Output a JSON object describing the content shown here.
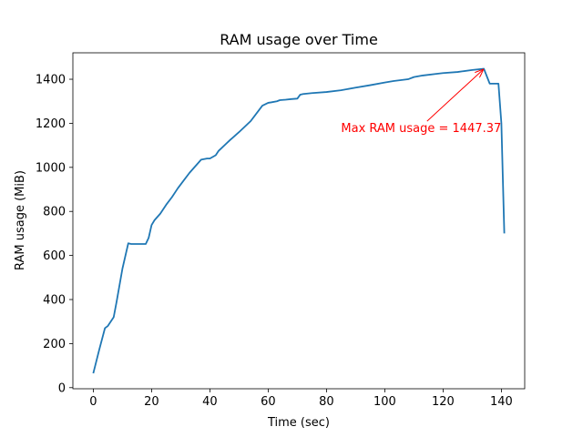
{
  "chart_data": {
    "type": "line",
    "title": "RAM usage over Time",
    "xlabel": "Time (sec)",
    "ylabel": "RAM usage (MiB)",
    "xlim": [
      -7,
      148
    ],
    "ylim": [
      -5,
      1520
    ],
    "xticks": [
      0,
      20,
      40,
      60,
      80,
      100,
      120,
      140
    ],
    "yticks": [
      0,
      200,
      400,
      600,
      800,
      1000,
      1200,
      1400
    ],
    "grid": false,
    "legend": "none",
    "line_color": "#1f77b4",
    "series": [
      {
        "x": [
          0,
          2,
          4,
          5,
          7,
          8,
          10,
          12,
          13,
          15,
          18,
          19,
          20,
          21,
          23,
          25,
          27,
          29,
          31,
          33,
          35,
          37,
          39,
          40,
          42,
          43,
          45,
          47,
          50,
          54,
          58,
          60,
          61,
          63,
          64,
          66,
          68,
          70,
          71,
          72,
          75,
          80,
          85,
          90,
          95,
          100,
          103,
          108,
          110,
          113,
          118,
          120,
          125,
          130,
          134,
          136,
          137,
          139,
          140,
          141
        ],
        "y": [
          65,
          170,
          270,
          280,
          320,
          390,
          540,
          655,
          652,
          652,
          652,
          680,
          738,
          760,
          790,
          830,
          865,
          905,
          940,
          975,
          1005,
          1035,
          1040,
          1040,
          1055,
          1075,
          1100,
          1125,
          1160,
          1210,
          1280,
          1293,
          1295,
          1300,
          1305,
          1307,
          1310,
          1312,
          1330,
          1333,
          1337,
          1342,
          1350,
          1362,
          1373,
          1385,
          1392,
          1400,
          1410,
          1417,
          1425,
          1428,
          1433,
          1442,
          1447.37,
          1380,
          1380,
          1380,
          1200,
          700
        ]
      }
    ],
    "annotation": {
      "text": "Max RAM usage = 1447.37",
      "color": "#ff0000",
      "point": [
        134,
        1447.37
      ],
      "text_anchor": [
        85,
        1160
      ]
    }
  }
}
